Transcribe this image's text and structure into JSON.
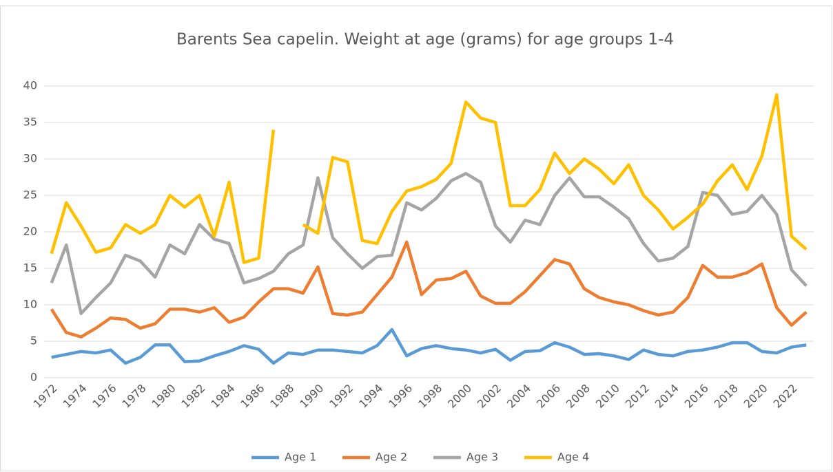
{
  "chart_data": {
    "type": "line",
    "title": "Barents Sea capelin. Weight at age (grams) for age groups 1-4",
    "categories": [
      "1972",
      null,
      "1974",
      null,
      "1976",
      null,
      "1978",
      null,
      "1980",
      null,
      "1982",
      null,
      "1984",
      null,
      "1986",
      null,
      "1988",
      null,
      "1990",
      null,
      "1992",
      null,
      "1994",
      null,
      "1996",
      null,
      "1998",
      null,
      "2000",
      null,
      "2002",
      null,
      "2004",
      null,
      "2006",
      null,
      "2008",
      null,
      "2010",
      null,
      "2012",
      null,
      "2014",
      null,
      "2016",
      null,
      "2018",
      null,
      "2020",
      null,
      "2022",
      null
    ],
    "series": [
      {
        "name": "Age 1",
        "color": "#5b9bd5",
        "values": [
          2.8,
          3.2,
          3.6,
          3.4,
          3.8,
          2.0,
          2.8,
          4.5,
          4.5,
          2.2,
          2.3,
          3.0,
          3.6,
          4.4,
          3.9,
          2.0,
          3.4,
          3.2,
          3.8,
          3.8,
          3.6,
          3.4,
          4.4,
          6.6,
          3.0,
          4.0,
          4.4,
          4.0,
          3.8,
          3.4,
          3.9,
          2.4,
          3.6,
          3.7,
          4.8,
          4.2,
          3.2,
          3.3,
          3.0,
          2.5,
          3.8,
          3.2,
          3.0,
          3.6,
          3.8,
          4.2,
          4.8,
          4.8,
          3.6,
          3.4,
          4.2,
          4.5
        ]
      },
      {
        "name": "Age 2",
        "color": "#ed7d31",
        "values": [
          9.4,
          6.2,
          5.6,
          6.8,
          8.2,
          8.0,
          6.8,
          7.4,
          9.4,
          9.4,
          9.0,
          9.6,
          7.6,
          8.3,
          10.4,
          12.2,
          12.2,
          11.6,
          15.2,
          8.8,
          8.6,
          9.0,
          11.4,
          13.8,
          18.6,
          11.4,
          13.4,
          13.6,
          14.6,
          11.2,
          10.2,
          10.2,
          11.8,
          14.0,
          16.2,
          15.6,
          12.2,
          11.0,
          10.4,
          10.0,
          9.2,
          8.6,
          9.0,
          11.0,
          15.4,
          13.8,
          13.8,
          14.4,
          15.6,
          9.6,
          7.2,
          9.0
        ]
      },
      {
        "name": "Age 3",
        "color": "#a5a5a5",
        "values": [
          13.0,
          18.2,
          8.8,
          11.0,
          13.0,
          16.8,
          16.0,
          13.8,
          18.2,
          17.0,
          21.0,
          19.0,
          18.4,
          13.0,
          13.6,
          14.6,
          17.0,
          18.2,
          27.4,
          19.2,
          17.0,
          15.0,
          16.6,
          16.8,
          24.0,
          23.0,
          24.6,
          27.0,
          28.0,
          26.8,
          20.8,
          18.6,
          21.6,
          21.0,
          25.0,
          27.4,
          24.8,
          24.8,
          23.4,
          21.8,
          18.4,
          16.0,
          16.4,
          18.0,
          25.4,
          25.0,
          22.4,
          22.8,
          25.0,
          22.4,
          14.8,
          12.6
        ]
      },
      {
        "name": "Age 4",
        "color": "#ffc000",
        "values": [
          17.0,
          24.0,
          20.8,
          17.2,
          17.8,
          21.0,
          19.8,
          21.0,
          25.0,
          23.4,
          25.0,
          19.4,
          26.8,
          15.8,
          16.4,
          34.0,
          null,
          21.0,
          19.8,
          30.2,
          29.6,
          18.8,
          18.4,
          22.8,
          25.6,
          26.2,
          27.2,
          29.4,
          37.8,
          35.6,
          35.0,
          23.6,
          23.6,
          25.8,
          30.8,
          28.0,
          30.0,
          28.6,
          26.6,
          29.2,
          25.0,
          23.0,
          20.4,
          22.0,
          23.8,
          27.0,
          29.2,
          25.8,
          30.4,
          38.8,
          19.4,
          17.6
        ]
      }
    ],
    "ylim": [
      0,
      40
    ],
    "yticks": [
      0,
      5,
      10,
      15,
      20,
      25,
      30,
      35,
      40
    ],
    "grid": true,
    "legend": "bottom"
  }
}
